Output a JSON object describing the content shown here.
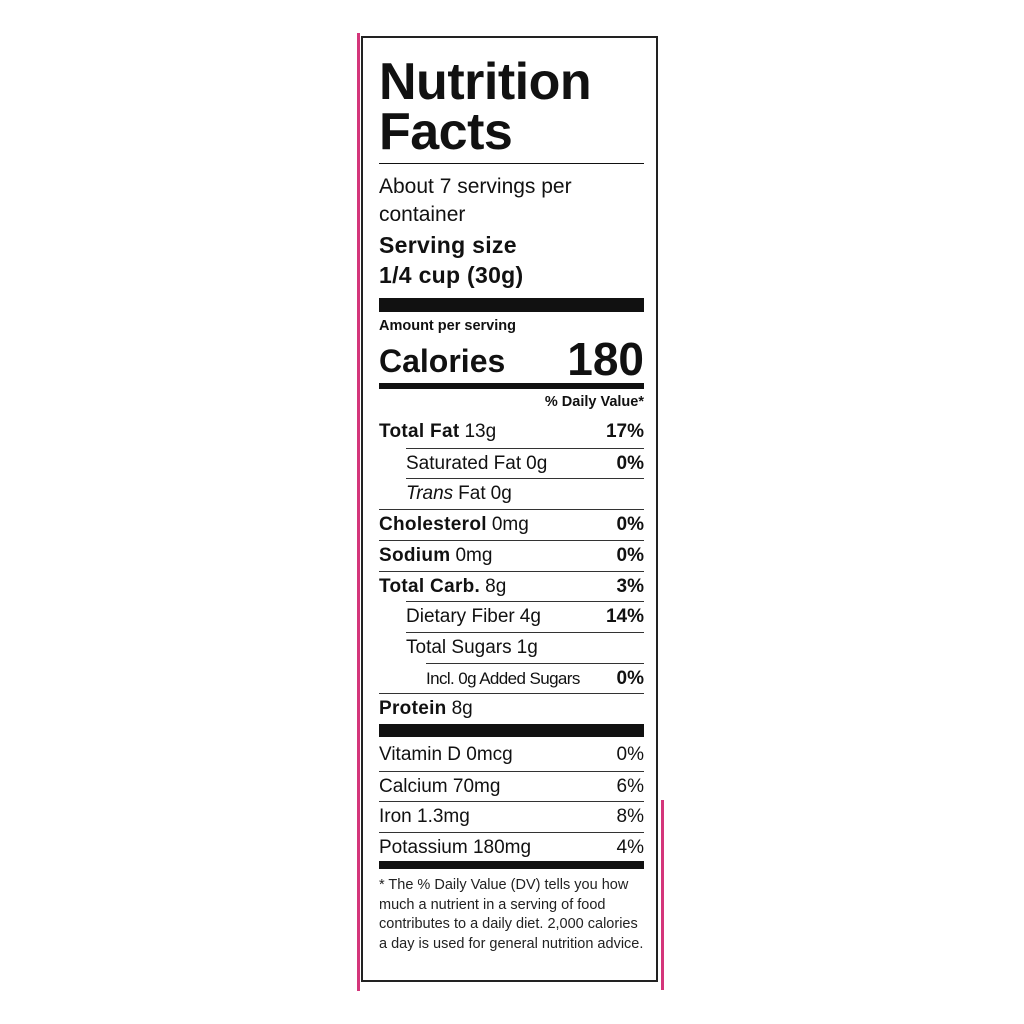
{
  "title_line1": "Nutrition",
  "title_line2": "Facts",
  "servings_line1": "About 7 servings per",
  "servings_line2": "container",
  "serving_size_label": "Serving size",
  "serving_size_value": "1/4 cup (30g)",
  "amount_per_serving": "Amount per serving",
  "calories_label": "Calories",
  "calories_value": "180",
  "daily_value_header": "% Daily Value*",
  "nutrients": [
    {
      "name": "Total Fat",
      "amount": "13g",
      "dv": "17%"
    },
    {
      "name": "Saturated Fat",
      "amount": "0g",
      "dv": "0%"
    },
    {
      "name": "Trans",
      "name_suffix": "Fat",
      "amount": "0g",
      "dv": ""
    },
    {
      "name": "Cholesterol",
      "amount": "0mg",
      "dv": "0%"
    },
    {
      "name": "Sodium",
      "amount": "0mg",
      "dv": "0%"
    },
    {
      "name": "Total Carb.",
      "amount": "8g",
      "dv": "3%"
    },
    {
      "name": "Dietary Fiber",
      "amount": "4g",
      "dv": "14%"
    },
    {
      "name": "Total Sugars",
      "amount": "1g",
      "dv": ""
    },
    {
      "name": "Incl. 0g Added Sugars",
      "amount": "",
      "dv": "0%"
    },
    {
      "name": "Protein",
      "amount": "8g",
      "dv": ""
    }
  ],
  "vitamins": [
    {
      "name": "Vitamin D 0mcg",
      "dv": "0%"
    },
    {
      "name": "Calcium 70mg",
      "dv": "6%"
    },
    {
      "name": "Iron 1.3mg",
      "dv": "8%"
    },
    {
      "name": "Potassium 180mg",
      "dv": "4%"
    }
  ],
  "footnote": "* The % Daily Value (DV) tells you how much a nutrient in a serving of food contributes to a daily diet. 2,000 calories a day is used for general nutrition advice.",
  "colors": {
    "border_accent": "#d4357a",
    "ink": "#111111"
  }
}
